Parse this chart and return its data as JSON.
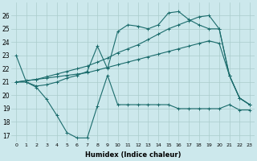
{
  "xlabel": "Humidex (Indice chaleur)",
  "bg_color": "#cce8ec",
  "grid_color": "#aacccc",
  "line_color": "#1a6b6b",
  "xlim": [
    -0.5,
    23.5
  ],
  "ylim": [
    16.5,
    27.0
  ],
  "yticks": [
    17,
    18,
    19,
    20,
    21,
    22,
    23,
    24,
    25,
    26
  ],
  "xticks": [
    0,
    1,
    2,
    3,
    4,
    5,
    6,
    7,
    8,
    9,
    10,
    11,
    12,
    13,
    14,
    15,
    16,
    17,
    18,
    19,
    20,
    21,
    22,
    23
  ],
  "line1_x": [
    0,
    1,
    2,
    3,
    4,
    5,
    6,
    7,
    8,
    9,
    10,
    11,
    12,
    13,
    14,
    15,
    16,
    17,
    18,
    19,
    20,
    21,
    22,
    23
  ],
  "line1_y": [
    23.0,
    21.0,
    20.6,
    19.7,
    18.5,
    17.2,
    16.8,
    16.8,
    19.2,
    21.5,
    19.3,
    19.3,
    19.3,
    19.3,
    19.3,
    19.3,
    19.0,
    19.0,
    19.0,
    19.0,
    19.0,
    19.3,
    18.9,
    18.9
  ],
  "line2_x": [
    0,
    1,
    2,
    3,
    4,
    5,
    6,
    7,
    8,
    9,
    10,
    11,
    12,
    13,
    14,
    15,
    16,
    17,
    18,
    19,
    20,
    21,
    22,
    23
  ],
  "line2_y": [
    21.0,
    21.1,
    21.2,
    21.3,
    21.4,
    21.5,
    21.6,
    21.7,
    21.9,
    22.1,
    22.3,
    22.5,
    22.7,
    22.9,
    23.1,
    23.3,
    23.5,
    23.7,
    23.9,
    24.1,
    23.9,
    21.5,
    19.8,
    19.3
  ],
  "line3_x": [
    0,
    1,
    2,
    3,
    4,
    5,
    6,
    7,
    8,
    9,
    10,
    11,
    12,
    13,
    14,
    15,
    16,
    17,
    18,
    19,
    20,
    21,
    22,
    23
  ],
  "line3_y": [
    21.0,
    21.1,
    21.2,
    21.4,
    21.6,
    21.8,
    22.0,
    22.2,
    22.5,
    22.8,
    23.2,
    23.5,
    23.8,
    24.2,
    24.6,
    25.0,
    25.3,
    25.6,
    25.9,
    26.0,
    25.0,
    21.5,
    19.8,
    19.3
  ],
  "line4_x": [
    0,
    1,
    2,
    3,
    4,
    5,
    6,
    7,
    8,
    9,
    10,
    11,
    12,
    13,
    14,
    15,
    16,
    17,
    18,
    19,
    20,
    21,
    22,
    23
  ],
  "line4_y": [
    21.0,
    21.0,
    20.7,
    20.8,
    21.0,
    21.3,
    21.5,
    21.8,
    23.7,
    22.0,
    24.8,
    25.3,
    25.2,
    25.0,
    25.3,
    26.2,
    26.3,
    25.7,
    25.3,
    25.0,
    25.0,
    21.5,
    19.8,
    19.3
  ]
}
